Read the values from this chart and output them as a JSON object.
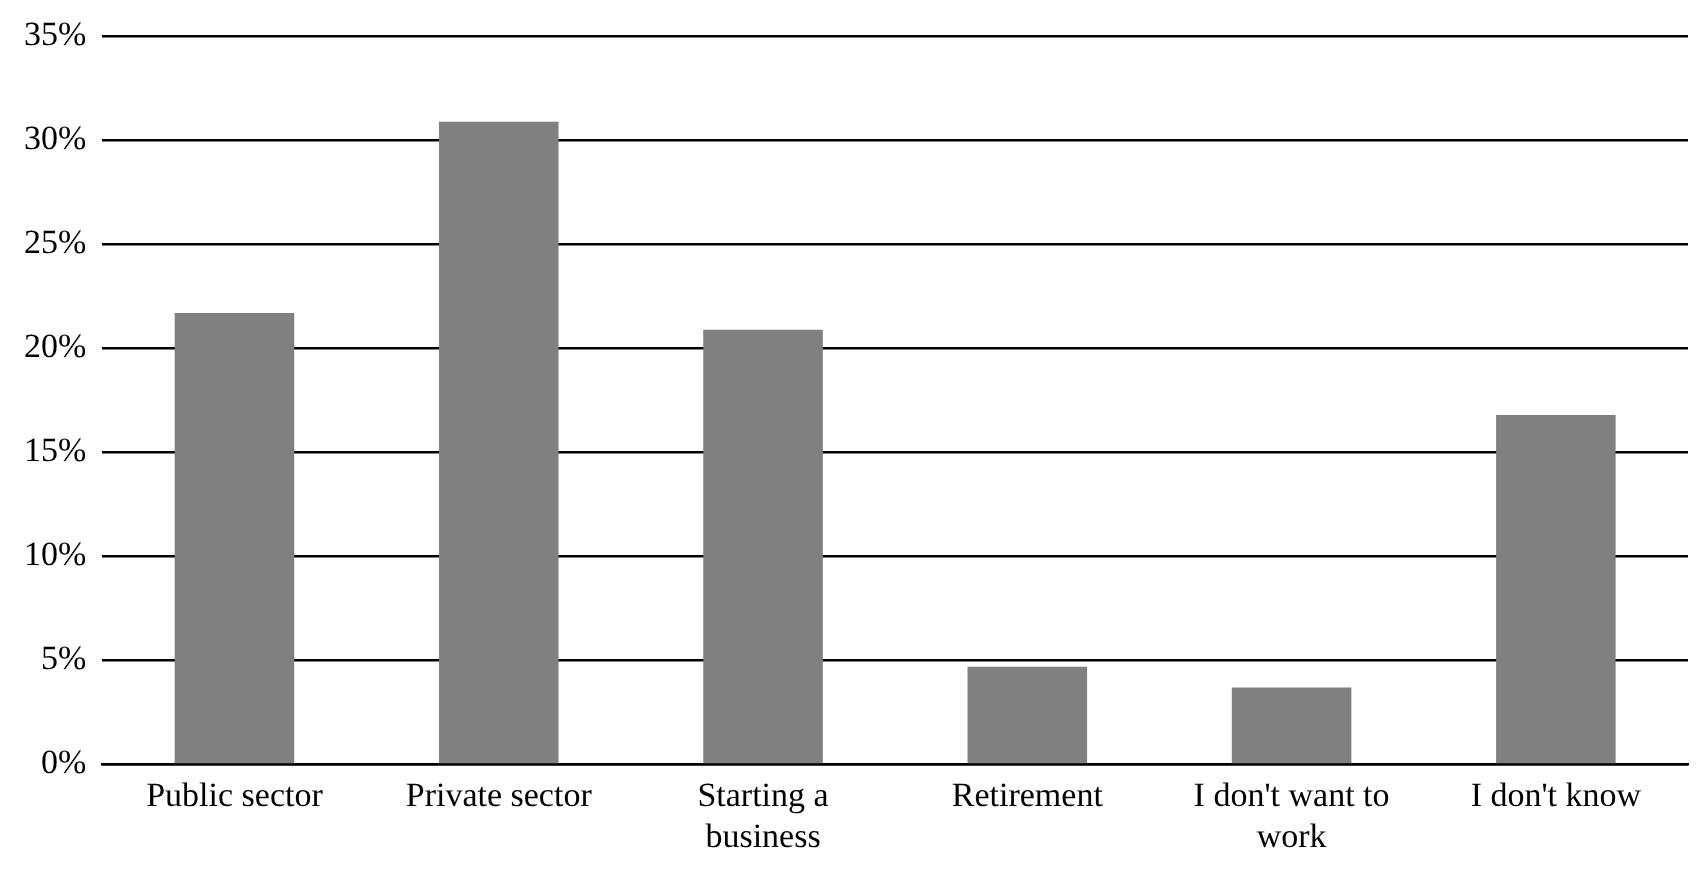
{
  "chart_data": {
    "type": "bar",
    "categories": [
      "Public sector",
      "Private sector",
      "Starting a business",
      "Retirement",
      "I don't want to work",
      "I don't know"
    ],
    "values": [
      21.7,
      30.9,
      20.9,
      4.7,
      3.7,
      16.8
    ],
    "color": "#808080",
    "ylim": [
      0,
      35
    ],
    "yticks": [
      {
        "value": 0,
        "label": "0%"
      },
      {
        "value": 5,
        "label": "5%"
      },
      {
        "value": 10,
        "label": "10%"
      },
      {
        "value": 15,
        "label": "15%"
      },
      {
        "value": 20,
        "label": "20%"
      },
      {
        "value": 25,
        "label": "25%"
      },
      {
        "value": 30,
        "label": "30%"
      },
      {
        "value": 35,
        "label": "35%"
      }
    ],
    "grid": "y",
    "legend": false
  }
}
